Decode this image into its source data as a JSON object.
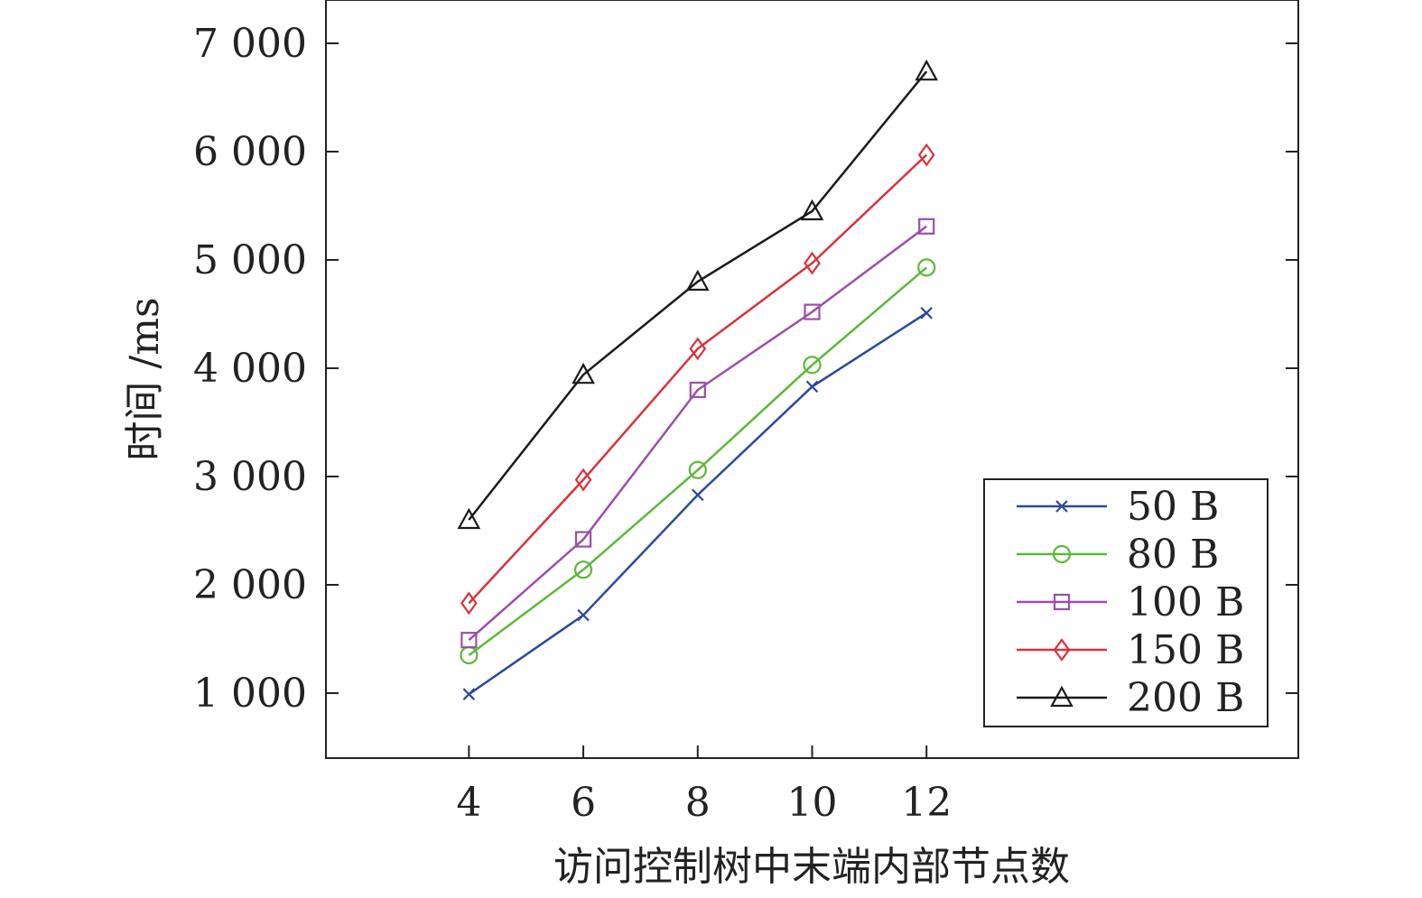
{
  "chart_data": {
    "type": "line",
    "xlabel": "访问控制树中末端内部节点数",
    "ylabel": "时间 /ms",
    "x": [
      4,
      6,
      8,
      10,
      12
    ],
    "xlim": [
      1.5,
      18.5
    ],
    "ylim": [
      400,
      7400
    ],
    "xticks": [
      4,
      6,
      8,
      10,
      12
    ],
    "xtick_labels": [
      "4",
      "6",
      "8",
      "10",
      "12"
    ],
    "yticks": [
      1000,
      2000,
      3000,
      4000,
      5000,
      6000,
      7000
    ],
    "ytick_labels": [
      "1 000",
      "2 000",
      "3 000",
      "4 000",
      "5 000",
      "6 000",
      "7 000"
    ],
    "grid": false,
    "legend_position": "bottom-right",
    "series": [
      {
        "name": "50 B",
        "color": "#2b4a9b",
        "marker": "x",
        "values": [
          990,
          1720,
          2830,
          3830,
          4510
        ]
      },
      {
        "name": "80 B",
        "color": "#5db83a",
        "marker": "circle",
        "values": [
          1350,
          2140,
          3060,
          4030,
          4930
        ]
      },
      {
        "name": "100 B",
        "color": "#9b4fa8",
        "marker": "square",
        "values": [
          1490,
          2420,
          3800,
          4520,
          5310
        ]
      },
      {
        "name": "150 B",
        "color": "#d8323c",
        "marker": "diamond",
        "values": [
          1830,
          2970,
          4180,
          4970,
          5970
        ]
      },
      {
        "name": "200 B",
        "color": "#1a1a1a",
        "marker": "triangle",
        "values": [
          2600,
          3940,
          4800,
          5450,
          6740
        ]
      }
    ]
  }
}
